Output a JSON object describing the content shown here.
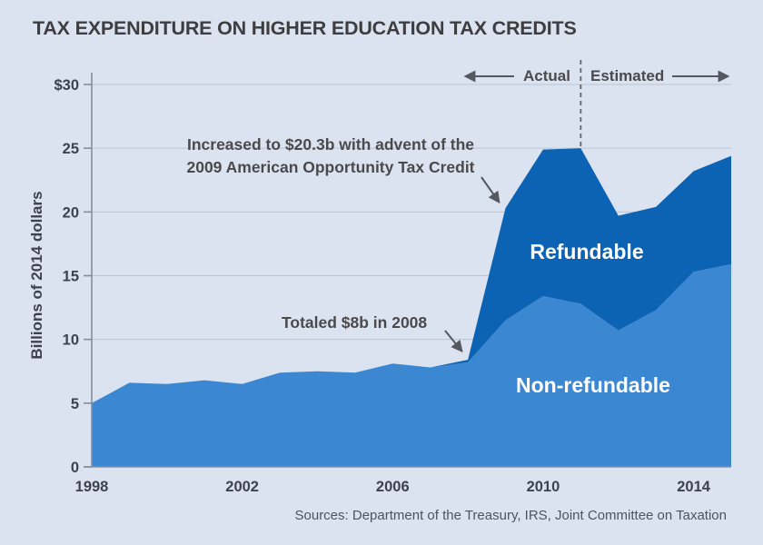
{
  "title": "TAX EXPENDITURE ON HIGHER EDUCATION TAX CREDITS",
  "source_note": "Sources: Department of the Treasury, IRS, Joint Committee on Taxation",
  "period_labels": {
    "actual": "Actual",
    "estimated": "Estimated"
  },
  "annotations": {
    "aotc": {
      "line1": "Increased to $20.3b with advent of the",
      "line2": "2009 American Opportunity Tax Credit"
    },
    "total_2008": {
      "text": "Totaled $8b in 2008"
    }
  },
  "series_labels": {
    "refundable": "Refundable",
    "nonrefundable": "Non-refundable"
  },
  "colors": {
    "background": "#dce3f0",
    "refundable": "#0c63b4",
    "nonrefundable": "#3b87d1",
    "gridline": "#bac4d3",
    "axis": "#848e9c",
    "title_text": "#3e3e40",
    "annotation_text": "#4a4a4c",
    "tick_text": "#3c434e",
    "source_text": "#4b5462",
    "divider": "#5f646b",
    "arrow": "#54595f",
    "series_label_text": "#ffffff"
  },
  "chart_data": {
    "type": "area",
    "stacked": true,
    "title": "TAX EXPENDITURE ON HIGHER EDUCATION TAX CREDITS",
    "ylabel": "Billions of 2014 dollars",
    "xlabel": "",
    "ylim": [
      0,
      30
    ],
    "grid": true,
    "legend": "inline-labels",
    "x": [
      1998,
      1999,
      2000,
      2001,
      2002,
      2003,
      2004,
      2005,
      2006,
      2007,
      2008,
      2009,
      2010,
      2011,
      2012,
      2013,
      2014,
      2015
    ],
    "series": [
      {
        "name": "Non-refundable",
        "values": [
          5.0,
          6.6,
          6.5,
          6.8,
          6.5,
          7.4,
          7.5,
          7.4,
          8.1,
          7.8,
          8.2,
          11.5,
          13.4,
          12.8,
          10.7,
          12.3,
          15.3,
          15.9
        ]
      },
      {
        "name": "Refundable",
        "values": [
          0,
          0,
          0,
          0,
          0,
          0,
          0,
          0,
          0,
          0,
          0.2,
          8.8,
          11.5,
          12.2,
          9.0,
          8.1,
          7.9,
          8.5
        ]
      }
    ],
    "totals": [
      5.0,
      6.6,
      6.5,
      6.8,
      6.5,
      7.4,
      7.5,
      7.4,
      8.1,
      7.8,
      8.4,
      20.3,
      24.9,
      25.0,
      19.7,
      20.4,
      23.2,
      24.4
    ],
    "y_ticks": [
      {
        "value": 30,
        "label": "$30"
      },
      {
        "value": 25,
        "label": "25"
      },
      {
        "value": 20,
        "label": "20"
      },
      {
        "value": 15,
        "label": "15"
      },
      {
        "value": 10,
        "label": "10"
      },
      {
        "value": 5,
        "label": "5"
      },
      {
        "value": 0,
        "label": "0"
      }
    ],
    "x_ticks": [
      {
        "value": 1998,
        "label": "1998"
      },
      {
        "value": 2002,
        "label": "2002"
      },
      {
        "value": 2006,
        "label": "2006"
      },
      {
        "value": 2010,
        "label": "2010"
      },
      {
        "value": 2014,
        "label": "2014"
      }
    ],
    "divider_year": 2011
  }
}
